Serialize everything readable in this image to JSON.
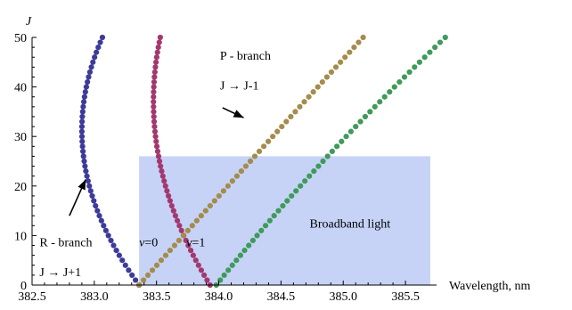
{
  "chart_data": {
    "type": "scatter",
    "xlabel": "Wavelength, nm",
    "ylabel": "J",
    "xlim": [
      382.5,
      385.75
    ],
    "ylim": [
      0,
      50
    ],
    "x_ticks": [
      "382.5",
      "383.0",
      "383.5",
      "384.0",
      "384.5",
      "385.0",
      "385.5"
    ],
    "x_tick_values": [
      382.5,
      383.0,
      383.5,
      384.0,
      384.5,
      385.0,
      385.5
    ],
    "y_ticks": [
      "0",
      "10",
      "20",
      "30",
      "40",
      "50"
    ],
    "y_tick_values": [
      0,
      10,
      20,
      30,
      40,
      50
    ],
    "grid": false,
    "legend": "none",
    "band": {
      "label": "Broadband light",
      "x_range": [
        383.36,
        385.7
      ],
      "y_range": [
        0,
        26
      ],
      "color": "#c6d3f7"
    },
    "series": [
      {
        "name": "",
        "branch": "R",
        "color": "#3d3b98",
        "model": {
          "x0": 383.36,
          "a": -0.0294,
          "b": 0.00047,
          "y_max": 50
        }
      },
      {
        "name": "",
        "branch": "R",
        "color": "#a3386f",
        "model": {
          "x0": 383.93,
          "a": -0.0245,
          "b": 0.00033,
          "y_max": 50
        }
      },
      {
        "name": "",
        "branch": "P",
        "color": "#a48c4e",
        "model": {
          "x0": 383.36,
          "a": 0.0355,
          "b": 1e-05,
          "y_max": 50
        }
      },
      {
        "name": "",
        "branch": "P",
        "color": "#3f9a5b",
        "model": {
          "x0": 383.98,
          "a": 0.0318,
          "b": 0.0001,
          "y_max": 50
        }
      }
    ],
    "annotations": [
      {
        "text": "P - branch",
        "x": 384.01,
        "y": 45.5
      },
      {
        "text": "J → J-1",
        "x": 384.01,
        "y": 39.5
      },
      {
        "text": "R - branch",
        "x": 382.56,
        "y": 7.8
      },
      {
        "text": "J → J+1",
        "x": 382.56,
        "y": 1.8
      },
      {
        "text": "ν=0",
        "x": 383.36,
        "y": 7.8
      },
      {
        "text": "ν=1",
        "x": 383.74,
        "y": 7.8
      },
      {
        "text": "Broadband light",
        "x": 384.73,
        "y": 11.6
      }
    ],
    "arrows": [
      {
        "from": [
          384.03,
          35.8
        ],
        "to": [
          384.2,
          33.8
        ]
      },
      {
        "from": [
          382.8,
          14.0
        ],
        "to": [
          382.93,
          21.3
        ]
      }
    ]
  }
}
